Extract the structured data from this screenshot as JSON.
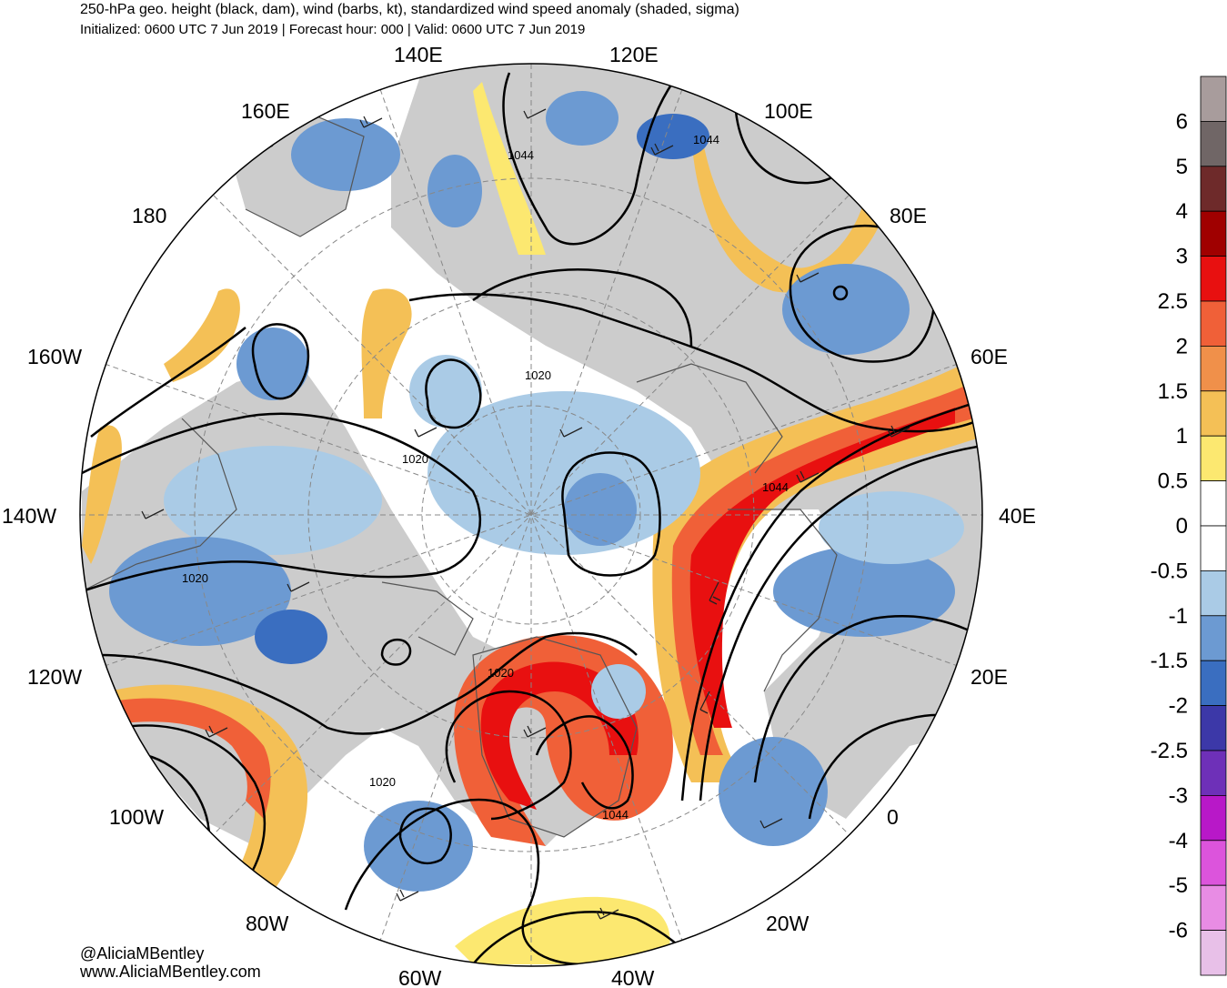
{
  "header": {
    "title": "250-hPa geo. height (black, dam), wind (barbs, kt), standardized wind speed anomaly (shaded, sigma)",
    "subtitle": "Initialized: 0600 UTC 7 Jun 2019 | Forecast hour: 000 | Valid: 0600 UTC 7 Jun 2019"
  },
  "map": {
    "projection": "north polar stereographic",
    "longitude_labels": [
      "140E",
      "120E",
      "160E",
      "100E",
      "180",
      "80E",
      "160W",
      "60E",
      "140W",
      "40E",
      "120W",
      "20E",
      "100W",
      "0",
      "80W",
      "20W",
      "60W",
      "40W"
    ],
    "contour_labels": [
      "1044",
      "1044",
      "1020",
      "1020",
      "1044",
      "1020",
      "1020",
      "1020",
      "1044"
    ],
    "colors": {
      "ocean": "#ffffff",
      "land": "#cccccc",
      "coast": "#555555",
      "contour": "#000000",
      "graticule": "#888888"
    }
  },
  "colorbar": {
    "labels": [
      "6",
      "5",
      "4",
      "3",
      "2.5",
      "2",
      "1.5",
      "1",
      "0.5",
      "0",
      "-0.5",
      "-1",
      "-1.5",
      "-2",
      "-2.5",
      "-3",
      "-4",
      "-5",
      "-6"
    ],
    "colors": [
      "#a89c9c",
      "#706666",
      "#6e2a2a",
      "#a00000",
      "#e81010",
      "#f06038",
      "#f0904a",
      "#f4c056",
      "#fce870",
      "#ffffff",
      "#ffffff",
      "#aacbe6",
      "#6c9ad2",
      "#3a6ec0",
      "#3c38a8",
      "#6e30b8",
      "#b818c8",
      "#dc54dc",
      "#e88ce4",
      "#e8c0e8"
    ]
  },
  "credits": {
    "handle": "@AliciaMBentley",
    "website": "www.AliciaMBentley.com"
  }
}
